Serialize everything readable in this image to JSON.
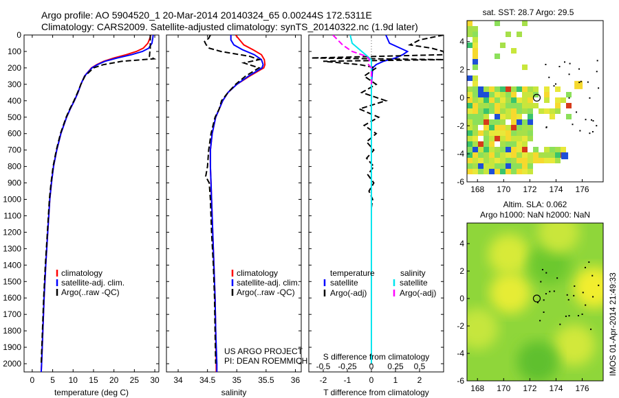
{
  "header": {
    "line1": "Argo profile: AO 5904520_1 20-Mar-2014 20140324_65 0.00244S 172.5311E",
    "line2": "Climatology: CARS2009. Satellite-adjusted climatology: synTS_20140322.nc (1.9d later)"
  },
  "colors": {
    "climatology": "#ff0000",
    "satellite": "#0000ff",
    "argo": "#000000",
    "salinity_satellite": "#00e5ee",
    "salinity_argo": "#ff00ff"
  },
  "depth_axis": {
    "ticks": [
      0,
      100,
      200,
      300,
      400,
      500,
      600,
      700,
      800,
      900,
      1000,
      1100,
      1200,
      1300,
      1400,
      1500,
      1600,
      1700,
      1800,
      1900,
      2000
    ],
    "ylim": [
      0,
      2050
    ]
  },
  "chart_data": [
    {
      "type": "line",
      "name": "temperature",
      "xlabel": "temperature (deg C)",
      "xlim": [
        -2,
        31
      ],
      "xticks": [
        0,
        5,
        10,
        15,
        20,
        25,
        30
      ],
      "legend": [
        "climatology",
        "satellite-adj. clim.",
        "Argo(..raw -QC)"
      ],
      "series": [
        {
          "name": "climatology",
          "depth": [
            0,
            20,
            50,
            80,
            100,
            120,
            140,
            160,
            180,
            200,
            250,
            300,
            350,
            400,
            450,
            500,
            600,
            700,
            800,
            900,
            1000,
            1200,
            1400,
            1600,
            1800,
            2000,
            2050
          ],
          "values": [
            29.0,
            28.8,
            28.3,
            27.2,
            25.5,
            23.0,
            20.0,
            17.5,
            15.8,
            14.5,
            12.8,
            11.9,
            11.2,
            10.3,
            9.3,
            8.4,
            7.0,
            6.0,
            5.2,
            4.7,
            4.3,
            3.8,
            3.3,
            2.9,
            2.6,
            2.3,
            2.2
          ]
        },
        {
          "name": "satellite-adj. clim.",
          "depth": [
            0,
            20,
            50,
            80,
            100,
            120,
            140,
            160,
            180,
            200,
            250,
            300,
            350,
            400,
            450,
            500,
            600,
            700,
            800,
            900,
            1000,
            1200,
            1400,
            1600,
            1800,
            2000,
            2050
          ],
          "values": [
            29.6,
            29.5,
            29.3,
            28.5,
            27.0,
            24.3,
            20.8,
            17.8,
            16.0,
            14.6,
            12.8,
            11.9,
            11.2,
            10.3,
            9.3,
            8.4,
            7.0,
            6.0,
            5.2,
            4.7,
            4.3,
            3.8,
            3.3,
            2.9,
            2.6,
            2.3,
            2.2
          ]
        },
        {
          "name": "Argo(..raw -QC)",
          "depth": [
            0,
            20,
            50,
            80,
            100,
            130,
            145,
            160,
            180,
            200,
            250,
            300,
            350,
            400,
            450,
            500,
            600,
            700,
            800,
            900,
            1000,
            1200,
            1400,
            1600,
            1800,
            2000
          ],
          "values": [
            28.9,
            28.9,
            28.9,
            28.9,
            28.8,
            28.7,
            29.8,
            22.0,
            17.5,
            15.0,
            12.9,
            11.9,
            11.1,
            10.2,
            9.2,
            8.3,
            6.9,
            5.9,
            5.1,
            4.6,
            4.2,
            3.7,
            3.2,
            2.8,
            2.5,
            2.2
          ]
        }
      ]
    },
    {
      "type": "line",
      "name": "salinity",
      "xlabel": "salinity",
      "xlim": [
        33.8,
        36.1
      ],
      "xticks": [
        34,
        34.5,
        35,
        35.5,
        36
      ],
      "legend": [
        "climatology",
        "satellite-adj. clim.",
        "Argo(..raw -QC)"
      ],
      "annotations": [
        "US ARGO PROJECT",
        "PI: DEAN ROEMMICH"
      ],
      "series": [
        {
          "name": "climatology",
          "depth": [
            0,
            30,
            60,
            90,
            120,
            150,
            180,
            200,
            250,
            300,
            350,
            400,
            450,
            500,
            600,
            700,
            800,
            900,
            1000,
            1200,
            1400,
            1600,
            1800,
            2000,
            2050
          ],
          "values": [
            34.98,
            35.05,
            35.12,
            35.28,
            35.42,
            35.47,
            35.48,
            35.46,
            35.22,
            35.0,
            34.85,
            34.76,
            34.7,
            34.64,
            34.58,
            34.55,
            34.55,
            34.56,
            34.57,
            34.59,
            34.61,
            34.63,
            34.64,
            34.65,
            34.65
          ]
        },
        {
          "name": "satellite-adj. clim.",
          "depth": [
            0,
            30,
            60,
            90,
            120,
            150,
            180,
            200,
            250,
            300,
            350,
            400,
            450,
            500,
            600,
            700,
            800,
            900,
            1000,
            1200,
            1400,
            1600,
            1800,
            2000,
            2050
          ],
          "values": [
            34.9,
            34.9,
            34.95,
            35.1,
            35.3,
            35.42,
            35.45,
            35.43,
            35.2,
            35.0,
            34.85,
            34.76,
            34.7,
            34.64,
            34.58,
            34.55,
            34.55,
            34.56,
            34.57,
            34.59,
            34.61,
            34.63,
            34.64,
            34.66,
            34.66
          ]
        },
        {
          "name": "Argo(..raw -QC)",
          "depth": [
            0,
            20,
            40,
            60,
            80,
            100,
            130,
            150,
            170,
            200,
            250,
            300,
            350,
            400,
            450,
            500,
            600,
            700,
            800,
            860,
            900,
            1000,
            1200,
            1400,
            1600,
            1800,
            2000
          ],
          "values": [
            34.55,
            34.52,
            34.45,
            34.48,
            34.53,
            34.73,
            35.22,
            35.38,
            35.12,
            35.38,
            35.15,
            34.98,
            34.85,
            34.74,
            34.7,
            34.63,
            34.56,
            34.52,
            34.5,
            34.47,
            34.53,
            34.55,
            34.57,
            34.6,
            34.62,
            34.63,
            34.64
          ]
        }
      ]
    },
    {
      "type": "line",
      "name": "differences",
      "xlabel": "T difference from climatology",
      "xlabel_top": "S difference from climatology",
      "xlim": [
        -2.6,
        3.0
      ],
      "xticks": [
        -2,
        -1,
        0,
        1,
        2
      ],
      "xticks_top_labels": [
        "-0.5",
        "-0.25",
        "0",
        "0.25",
        "0.5"
      ],
      "xticks_top_values": [
        -0.5,
        -0.25,
        0,
        0.25,
        0.5
      ],
      "legend_temperature_title": "temperature",
      "legend_salinity_title": "salinity",
      "legend_temperature": [
        "satellite",
        "Argo(-adj)"
      ],
      "legend_salinity": [
        "satellite",
        "Argo(-adj)"
      ],
      "series": [
        {
          "name": "T satellite",
          "depth": [
            0,
            50,
            100,
            120,
            140,
            160,
            180,
            200,
            300,
            400,
            500,
            600,
            800,
            1000,
            1500,
            2000
          ],
          "values": [
            0.6,
            0.75,
            1.5,
            1.3,
            1.0,
            0.5,
            0.2,
            0.05,
            0,
            0,
            0,
            0,
            0,
            0,
            0,
            0
          ]
        },
        {
          "name": "T Argo(-adj)",
          "depth": [
            0,
            30,
            60,
            80,
            100,
            120,
            140,
            150,
            160,
            180,
            200,
            250,
            300,
            350,
            400,
            450,
            500,
            550,
            600,
            650,
            700,
            750,
            800,
            850,
            900,
            950,
            1000,
            1050,
            1100,
            1200,
            1400,
            1600,
            1800,
            2000
          ],
          "values": [
            3.0,
            2.0,
            1.6,
            2.5,
            3.0,
            3.0,
            -2.5,
            3.0,
            -2.0,
            -0.5,
            0.2,
            -0.3,
            0.2,
            -0.4,
            0.6,
            -0.5,
            0.3,
            -0.3,
            0.2,
            -0.2,
            0.1,
            -0.2,
            0.1,
            -0.15,
            0.1,
            -0.1,
            0.05,
            0,
            0,
            0,
            0,
            0,
            0,
            0
          ]
        },
        {
          "name": "S satellite",
          "depth": [
            0,
            50,
            100,
            150,
            200,
            300,
            500,
            800,
            1000,
            1500,
            2000
          ],
          "values": [
            -0.22,
            -0.2,
            -0.1,
            0.0,
            0.0,
            0.0,
            0.0,
            0.0,
            0.0,
            0.0,
            0.0
          ]
        },
        {
          "name": "S Argo(-adj)",
          "depth": [
            0,
            30,
            60,
            100,
            130,
            150,
            180,
            200,
            250,
            300
          ],
          "values": [
            -0.4,
            -0.35,
            -0.3,
            -0.2,
            -0.05,
            -0.02,
            -0.03,
            0.0,
            0.0,
            0.0
          ]
        }
      ]
    }
  ],
  "map_sst": {
    "title": "sat. SST: 28.7 Argo: 29.5",
    "xticks": [
      168,
      170,
      172,
      174,
      176
    ],
    "yticks": [
      4,
      2,
      0,
      -2,
      -4,
      -6
    ],
    "xlim": [
      167.2,
      177.6
    ],
    "ylim": [
      -6,
      5.5
    ],
    "argo_position": {
      "lon": 172.53,
      "lat": 0.0
    }
  },
  "map_sla": {
    "title_line1": "Altim. SLA: 0.062",
    "title_line2": "Argo h1000: NaN h2000: NaN",
    "xticks": [
      168,
      170,
      172,
      174,
      176
    ],
    "yticks": [
      4,
      2,
      0,
      -2,
      -4,
      -6
    ],
    "xlim": [
      167.2,
      177.6
    ],
    "ylim": [
      -6,
      5.5
    ],
    "argo_position": {
      "lon": 172.53,
      "lat": 0.0
    }
  },
  "footer": {
    "stamp": "IMOS 01-Apr-2014 21:49:33"
  }
}
